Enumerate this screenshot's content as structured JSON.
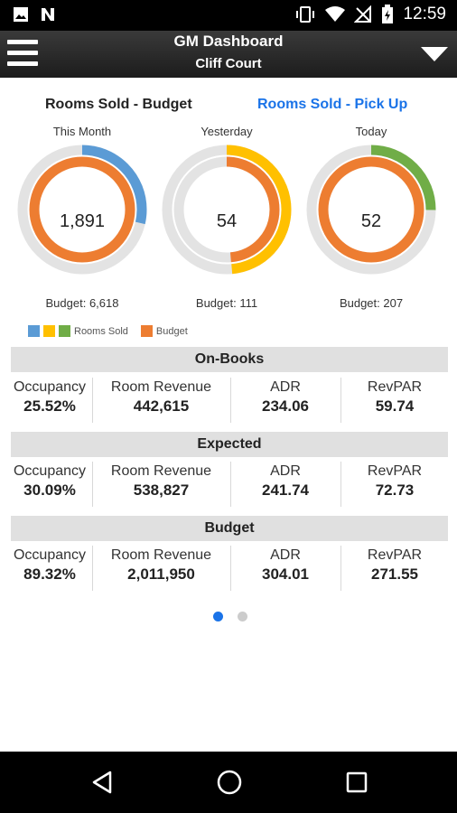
{
  "status_bar": {
    "time": "12:59",
    "icons": [
      "image-icon",
      "n-icon",
      "vibrate-icon",
      "wifi-icon",
      "no-signal-icon",
      "battery-charging-icon"
    ]
  },
  "header": {
    "title": "GM Dashboard",
    "subtitle": "Cliff Court",
    "menu_icon": "hamburger-icon",
    "dropdown_icon": "triangle-down-icon"
  },
  "tabs": {
    "budget": "Rooms Sold - Budget",
    "pickup": "Rooms Sold - Pick Up"
  },
  "gauges": [
    {
      "caption": "This Month",
      "value": "1,891",
      "budget_label": "Budget: 6,618",
      "sold_fraction": 0.286,
      "color": "#5b9bd5"
    },
    {
      "caption": "Yesterday",
      "value": "54",
      "budget_label": "Budget: 111",
      "sold_fraction": 0.486,
      "color": "#ffc000"
    },
    {
      "caption": "Today",
      "value": "52",
      "budget_label": "Budget: 207",
      "sold_fraction": 0.251,
      "color": "#70ad47"
    }
  ],
  "legend": {
    "rooms_sold": "Rooms Sold",
    "budget": "Budget",
    "colors": {
      "blue": "#5b9bd5",
      "yellow": "#ffc000",
      "green": "#70ad47",
      "orange": "#ed7d31"
    }
  },
  "sections": [
    {
      "title": "On-Books",
      "occupancy": "25.52%",
      "room_revenue": "442,615",
      "adr": "234.06",
      "revpar": "59.74"
    },
    {
      "title": "Expected",
      "occupancy": "30.09%",
      "room_revenue": "538,827",
      "adr": "241.74",
      "revpar": "72.73"
    },
    {
      "title": "Budget",
      "occupancy": "89.32%",
      "room_revenue": "2,011,950",
      "adr": "304.01",
      "revpar": "271.55"
    }
  ],
  "metric_labels": {
    "occupancy": "Occupancy",
    "room_revenue": "Room Revenue",
    "adr": "ADR",
    "revpar": "RevPAR"
  },
  "pager": {
    "pages": 2,
    "active": 1,
    "active_color": "#1a73e8",
    "inactive_color": "#cccccc"
  },
  "nav_bar": {
    "icons": [
      "back-icon",
      "home-icon",
      "recents-icon"
    ]
  }
}
